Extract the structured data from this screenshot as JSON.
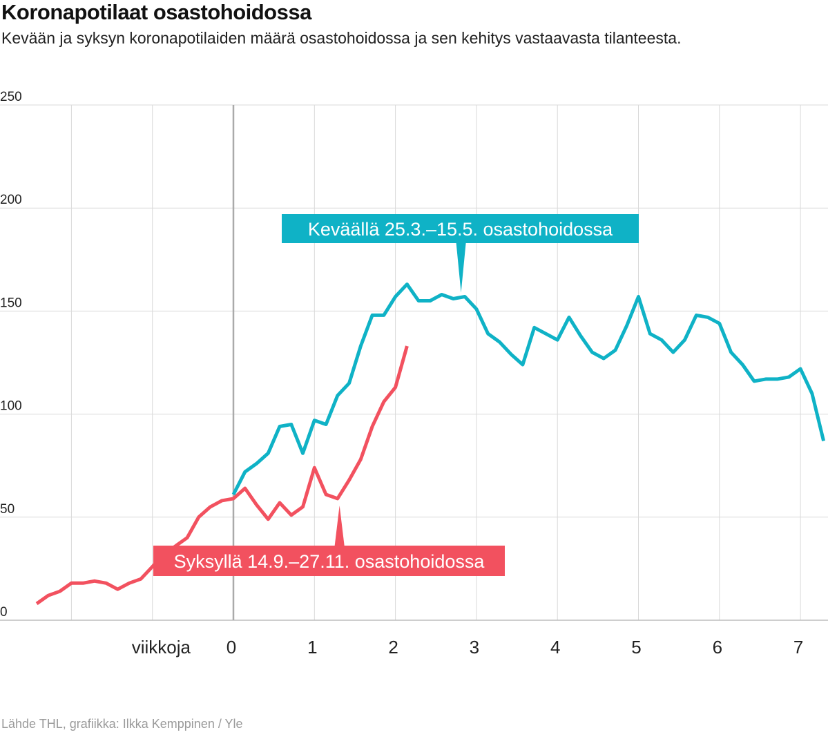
{
  "title": "Koronapotilaat osastohoidossa",
  "subtitle": "Kevään ja syksyn koronapotilaiden määrä osastohoidossa ja sen kehitys vastaavasta tilanteesta.",
  "source": "Lähde THL, grafiikka: Ilkka Kemppinen / Yle",
  "colors": {
    "spring": "#0fb2c6",
    "autumn": "#f2515f",
    "grid": "#d9d9d9",
    "zero_line": "#aaaaaa"
  },
  "chart_data": {
    "type": "line",
    "title": "Koronapotilaat osastohoidossa",
    "xlabel": "viikkoja",
    "ylabel": "",
    "xlim": [
      -2.45,
      7.35
    ],
    "ylim": [
      0,
      250
    ],
    "y_ticks": [
      0,
      50,
      100,
      150,
      200,
      250
    ],
    "x_ticks": [
      0,
      1,
      2,
      3,
      4,
      5,
      6,
      7
    ],
    "x_unit_label": "viikkoja",
    "grid": true,
    "series": [
      {
        "name": "Keväällä 25.3.–15.5. osastohoidossa",
        "color": "#0fb2c6",
        "x": [
          0,
          0.143,
          0.286,
          0.429,
          0.571,
          0.714,
          0.857,
          1.0,
          1.143,
          1.286,
          1.429,
          1.571,
          1.714,
          1.857,
          2.0,
          2.143,
          2.286,
          2.429,
          2.571,
          2.714,
          2.857,
          3.0,
          3.143,
          3.286,
          3.429,
          3.571,
          3.714,
          3.857,
          4.0,
          4.143,
          4.286,
          4.429,
          4.571,
          4.714,
          4.857,
          5.0,
          5.143,
          5.286,
          5.429,
          5.571,
          5.714,
          5.857,
          6.0,
          6.143,
          6.286,
          6.429,
          6.571,
          6.714,
          6.857,
          7.0,
          7.143,
          7.286
        ],
        "y": [
          61,
          72,
          76,
          81,
          94,
          95,
          81,
          97,
          95,
          109,
          115,
          133,
          148,
          148,
          157,
          163,
          155,
          155,
          158,
          156,
          157,
          151,
          139,
          135,
          129,
          124,
          142,
          139,
          136,
          147,
          138,
          130,
          127,
          131,
          143,
          157,
          139,
          136,
          130,
          136,
          148,
          147,
          144,
          130,
          124,
          116,
          117,
          117,
          118,
          122,
          110,
          87
        ]
      },
      {
        "name": "Syksyllä 14.9.–27.11. osastohoidossa",
        "color": "#f2515f",
        "x": [
          -2.429,
          -2.286,
          -2.143,
          -2.0,
          -1.857,
          -1.714,
          -1.571,
          -1.429,
          -1.286,
          -1.143,
          -1.0,
          -0.857,
          -0.714,
          -0.571,
          -0.429,
          -0.286,
          -0.143,
          0,
          0.143,
          0.286,
          0.429,
          0.571,
          0.714,
          0.857,
          1.0,
          1.143,
          1.286,
          1.429,
          1.571,
          1.714,
          1.857,
          2.0,
          2.143
        ],
        "y": [
          8,
          12,
          14,
          18,
          18,
          19,
          18,
          15,
          18,
          20,
          26,
          32,
          36,
          40,
          50,
          55,
          58,
          59,
          64,
          56,
          49,
          57,
          51,
          55,
          74,
          61,
          59,
          68,
          78,
          94,
          106,
          113,
          133
        ]
      }
    ],
    "annotations": [
      {
        "text": "Keväällä 25.3.–15.5. osastohoidossa",
        "series": 0,
        "points_to_x": 2.81,
        "points_to_y": 163
      },
      {
        "text": "Syksyllä 14.9.–27.11. osastohoidossa",
        "series": 1,
        "points_to_x": 1.31,
        "points_to_y": 59
      }
    ]
  }
}
